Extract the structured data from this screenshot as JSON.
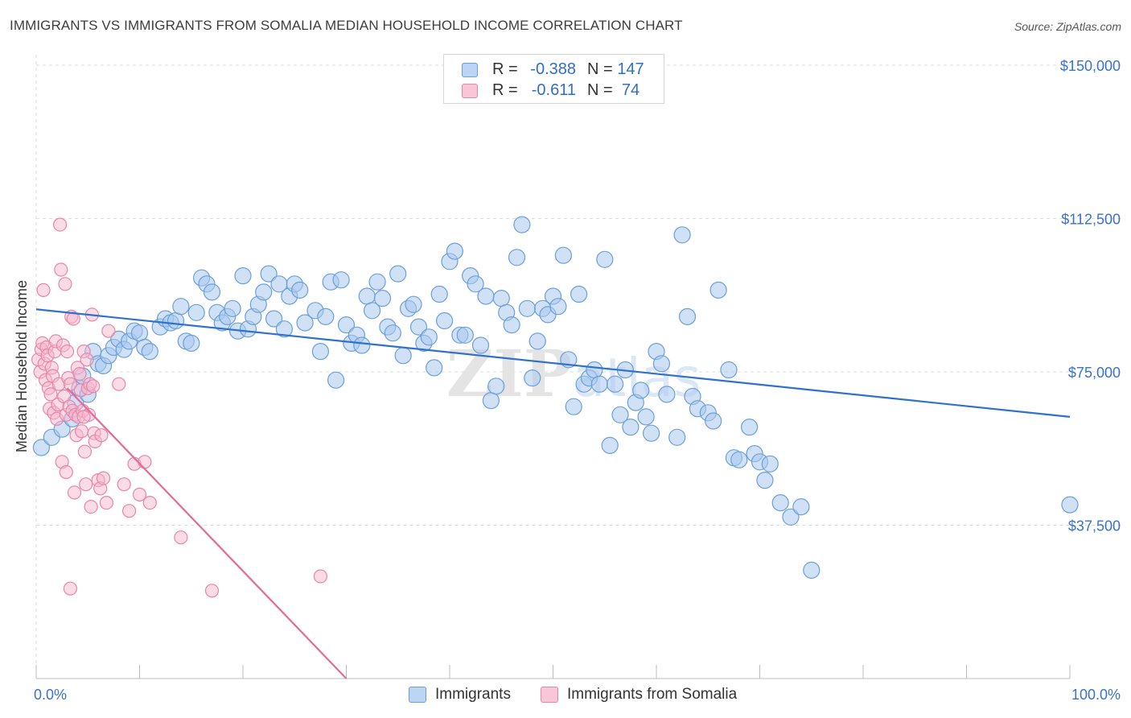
{
  "header": {
    "title": "IMMIGRANTS VS IMMIGRANTS FROM SOMALIA MEDIAN HOUSEHOLD INCOME CORRELATION CHART",
    "source": "Source: ZipAtlas.com"
  },
  "legend": {
    "rows": [
      {
        "r_label": "R =",
        "r_value": "-0.388",
        "n_label": "N =",
        "n_value": "147"
      },
      {
        "r_label": "R =",
        "r_value": "-0.611",
        "n_label": "N =",
        "n_value": "74"
      }
    ]
  },
  "bottom_legend": {
    "items": [
      "Immigrants",
      "Immigrants from Somalia"
    ]
  },
  "colors": {
    "blue_fill": "#a9c9ef",
    "blue_stroke": "#6a9fd8",
    "blue_line": "#2f72cc",
    "pink_fill": "#f7b8cd",
    "pink_stroke": "#e886a8",
    "pink_line": "#e56a98",
    "axis_text": "#3a72c6",
    "grid": "#dddddd"
  },
  "chart_data": {
    "type": "scatter",
    "title": "IMMIGRANTS VS IMMIGRANTS FROM SOMALIA MEDIAN HOUSEHOLD INCOME CORRELATION CHART",
    "xlabel": "",
    "ylabel": "Median Household Income",
    "xlim": [
      0,
      100
    ],
    "ylim": [
      0,
      155000
    ],
    "x_tick_labels": [
      "0.0%",
      "100.0%"
    ],
    "y_ticks": [
      37500,
      75000,
      112500,
      150000
    ],
    "y_tick_labels": [
      "$37,500",
      "$75,000",
      "$112,500",
      "$150,000"
    ],
    "grid": true,
    "watermark": "ZIPatlas",
    "series": [
      {
        "name": "Immigrants",
        "trend": {
          "x": [
            0,
            100
          ],
          "y": [
            90300,
            64000
          ]
        },
        "points": [
          [
            0.5,
            56500
          ],
          [
            1.5,
            59000
          ],
          [
            2.5,
            61000
          ],
          [
            3.5,
            63500
          ],
          [
            3.8,
            67500
          ],
          [
            4.2,
            71000
          ],
          [
            4.5,
            74000
          ],
          [
            5,
            69500
          ],
          [
            5.5,
            80000
          ],
          [
            6,
            77000
          ],
          [
            6.5,
            76500
          ],
          [
            7,
            79000
          ],
          [
            7.5,
            81000
          ],
          [
            8,
            83000
          ],
          [
            8.5,
            80500
          ],
          [
            9,
            82500
          ],
          [
            9.5,
            85000
          ],
          [
            10,
            84500
          ],
          [
            10.5,
            81000
          ],
          [
            11,
            80000
          ],
          [
            12,
            86000
          ],
          [
            12.5,
            88000
          ],
          [
            13,
            87000
          ],
          [
            13.5,
            87500
          ],
          [
            14,
            91000
          ],
          [
            14.5,
            82500
          ],
          [
            15,
            82000
          ],
          [
            15.5,
            89500
          ],
          [
            16,
            98000
          ],
          [
            16.5,
            96500
          ],
          [
            17,
            94500
          ],
          [
            17.5,
            89500
          ],
          [
            18,
            87000
          ],
          [
            18.5,
            88500
          ],
          [
            19,
            90500
          ],
          [
            19.5,
            85000
          ],
          [
            20,
            98500
          ],
          [
            20.5,
            85500
          ],
          [
            21,
            88500
          ],
          [
            21.5,
            91500
          ],
          [
            22,
            94500
          ],
          [
            22.5,
            99000
          ],
          [
            23,
            88000
          ],
          [
            23.5,
            96500
          ],
          [
            24,
            85500
          ],
          [
            24.5,
            93500
          ],
          [
            25,
            96500
          ],
          [
            25.5,
            95000
          ],
          [
            26,
            87000
          ],
          [
            27,
            90000
          ],
          [
            27.5,
            80000
          ],
          [
            28,
            88500
          ],
          [
            28.5,
            97000
          ],
          [
            29,
            73000
          ],
          [
            29.5,
            97500
          ],
          [
            30,
            86500
          ],
          [
            30.5,
            82000
          ],
          [
            31,
            84000
          ],
          [
            31.5,
            81500
          ],
          [
            32,
            93500
          ],
          [
            32.5,
            90000
          ],
          [
            33,
            97000
          ],
          [
            33.5,
            93000
          ],
          [
            34,
            86000
          ],
          [
            34.5,
            84500
          ],
          [
            35,
            99000
          ],
          [
            35.5,
            79000
          ],
          [
            36,
            90500
          ],
          [
            36.5,
            91500
          ],
          [
            37,
            86000
          ],
          [
            37.5,
            82000
          ],
          [
            38,
            83500
          ],
          [
            38.5,
            76000
          ],
          [
            39,
            94000
          ],
          [
            39.5,
            87500
          ],
          [
            40,
            102000
          ],
          [
            40.5,
            104500
          ],
          [
            41,
            84000
          ],
          [
            41.5,
            84000
          ],
          [
            42,
            98500
          ],
          [
            42.5,
            96500
          ],
          [
            43,
            81500
          ],
          [
            43.5,
            93500
          ],
          [
            44,
            68000
          ],
          [
            44.5,
            71500
          ],
          [
            45,
            93000
          ],
          [
            45.5,
            89500
          ],
          [
            46,
            86500
          ],
          [
            46.5,
            103000
          ],
          [
            47,
            111000
          ],
          [
            47.5,
            90500
          ],
          [
            48,
            73500
          ],
          [
            48.5,
            82500
          ],
          [
            49,
            90500
          ],
          [
            49.5,
            89000
          ],
          [
            50,
            93500
          ],
          [
            50.5,
            91000
          ],
          [
            51,
            103500
          ],
          [
            51.5,
            78000
          ],
          [
            52,
            66500
          ],
          [
            52.5,
            94000
          ],
          [
            53,
            72000
          ],
          [
            53.5,
            73500
          ],
          [
            54,
            75500
          ],
          [
            54.5,
            72000
          ],
          [
            55,
            102500
          ],
          [
            55.5,
            57000
          ],
          [
            56,
            72000
          ],
          [
            56.5,
            64500
          ],
          [
            57,
            75500
          ],
          [
            57.5,
            61500
          ],
          [
            58,
            67500
          ],
          [
            58.5,
            70500
          ],
          [
            59,
            64000
          ],
          [
            59.5,
            60000
          ],
          [
            60,
            80000
          ],
          [
            60.5,
            77000
          ],
          [
            61,
            69500
          ],
          [
            62,
            59000
          ],
          [
            62.5,
            108500
          ],
          [
            63,
            88500
          ],
          [
            63.5,
            69000
          ],
          [
            64,
            66000
          ],
          [
            65,
            65000
          ],
          [
            65.5,
            63000
          ],
          [
            66,
            95000
          ],
          [
            67,
            75500
          ],
          [
            67.5,
            54000
          ],
          [
            68,
            53500
          ],
          [
            69,
            61500
          ],
          [
            69.5,
            55000
          ],
          [
            70,
            53000
          ],
          [
            70.5,
            48500
          ],
          [
            71,
            52500
          ],
          [
            72,
            43000
          ],
          [
            73,
            39500
          ],
          [
            74,
            42000
          ],
          [
            75,
            26500
          ],
          [
            100,
            42500
          ]
        ]
      },
      {
        "name": "Immigrants from Somalia",
        "trend": {
          "x": [
            3,
            30
          ],
          "y": [
            71000,
            0
          ]
        },
        "points": [
          [
            0.2,
            78000
          ],
          [
            0.4,
            75000
          ],
          [
            0.5,
            80500
          ],
          [
            0.6,
            82000
          ],
          [
            0.7,
            95000
          ],
          [
            0.8,
            77000
          ],
          [
            0.9,
            73000
          ],
          [
            1,
            81000
          ],
          [
            1.1,
            79000
          ],
          [
            1.2,
            71000
          ],
          [
            1.3,
            66000
          ],
          [
            1.4,
            69500
          ],
          [
            1.5,
            76000
          ],
          [
            1.6,
            74000
          ],
          [
            1.7,
            65000
          ],
          [
            1.8,
            80000
          ],
          [
            1.9,
            82500
          ],
          [
            2,
            63500
          ],
          [
            2.1,
            67000
          ],
          [
            2.2,
            72000
          ],
          [
            2.3,
            111000
          ],
          [
            2.4,
            100000
          ],
          [
            2.5,
            53000
          ],
          [
            2.6,
            81500
          ],
          [
            2.7,
            69000
          ],
          [
            2.8,
            96500
          ],
          [
            2.9,
            64500
          ],
          [
            3,
            80000
          ],
          [
            3.1,
            73500
          ],
          [
            3.2,
            66500
          ],
          [
            3.3,
            72000
          ],
          [
            3.4,
            88500
          ],
          [
            3.5,
            65500
          ],
          [
            3.6,
            88000
          ],
          [
            3.7,
            45500
          ],
          [
            3.8,
            64500
          ],
          [
            3.9,
            59500
          ],
          [
            4,
            76000
          ],
          [
            4.1,
            64000
          ],
          [
            4.2,
            74500
          ],
          [
            4.3,
            70500
          ],
          [
            4.4,
            60500
          ],
          [
            4.5,
            65500
          ],
          [
            4.6,
            80000
          ],
          [
            4.7,
            55500
          ],
          [
            4.8,
            47500
          ],
          [
            4.9,
            78000
          ],
          [
            5,
            71000
          ],
          [
            5.1,
            64500
          ],
          [
            5.2,
            72000
          ],
          [
            5.3,
            42000
          ],
          [
            5.4,
            89000
          ],
          [
            5.5,
            71500
          ],
          [
            5.6,
            60000
          ],
          [
            5.7,
            58000
          ],
          [
            6,
            48500
          ],
          [
            6.2,
            46500
          ],
          [
            6.5,
            49000
          ],
          [
            6.8,
            43000
          ],
          [
            7,
            85000
          ],
          [
            8,
            72000
          ],
          [
            8.5,
            47500
          ],
          [
            9,
            41000
          ],
          [
            9.5,
            52500
          ],
          [
            10,
            45000
          ],
          [
            10.5,
            53000
          ],
          [
            11,
            43000
          ],
          [
            14,
            34500
          ],
          [
            17,
            21500
          ],
          [
            27.5,
            25000
          ],
          [
            3.3,
            22000
          ],
          [
            2.9,
            50500
          ],
          [
            6.3,
            59500
          ],
          [
            4.6,
            64000
          ]
        ]
      }
    ]
  }
}
